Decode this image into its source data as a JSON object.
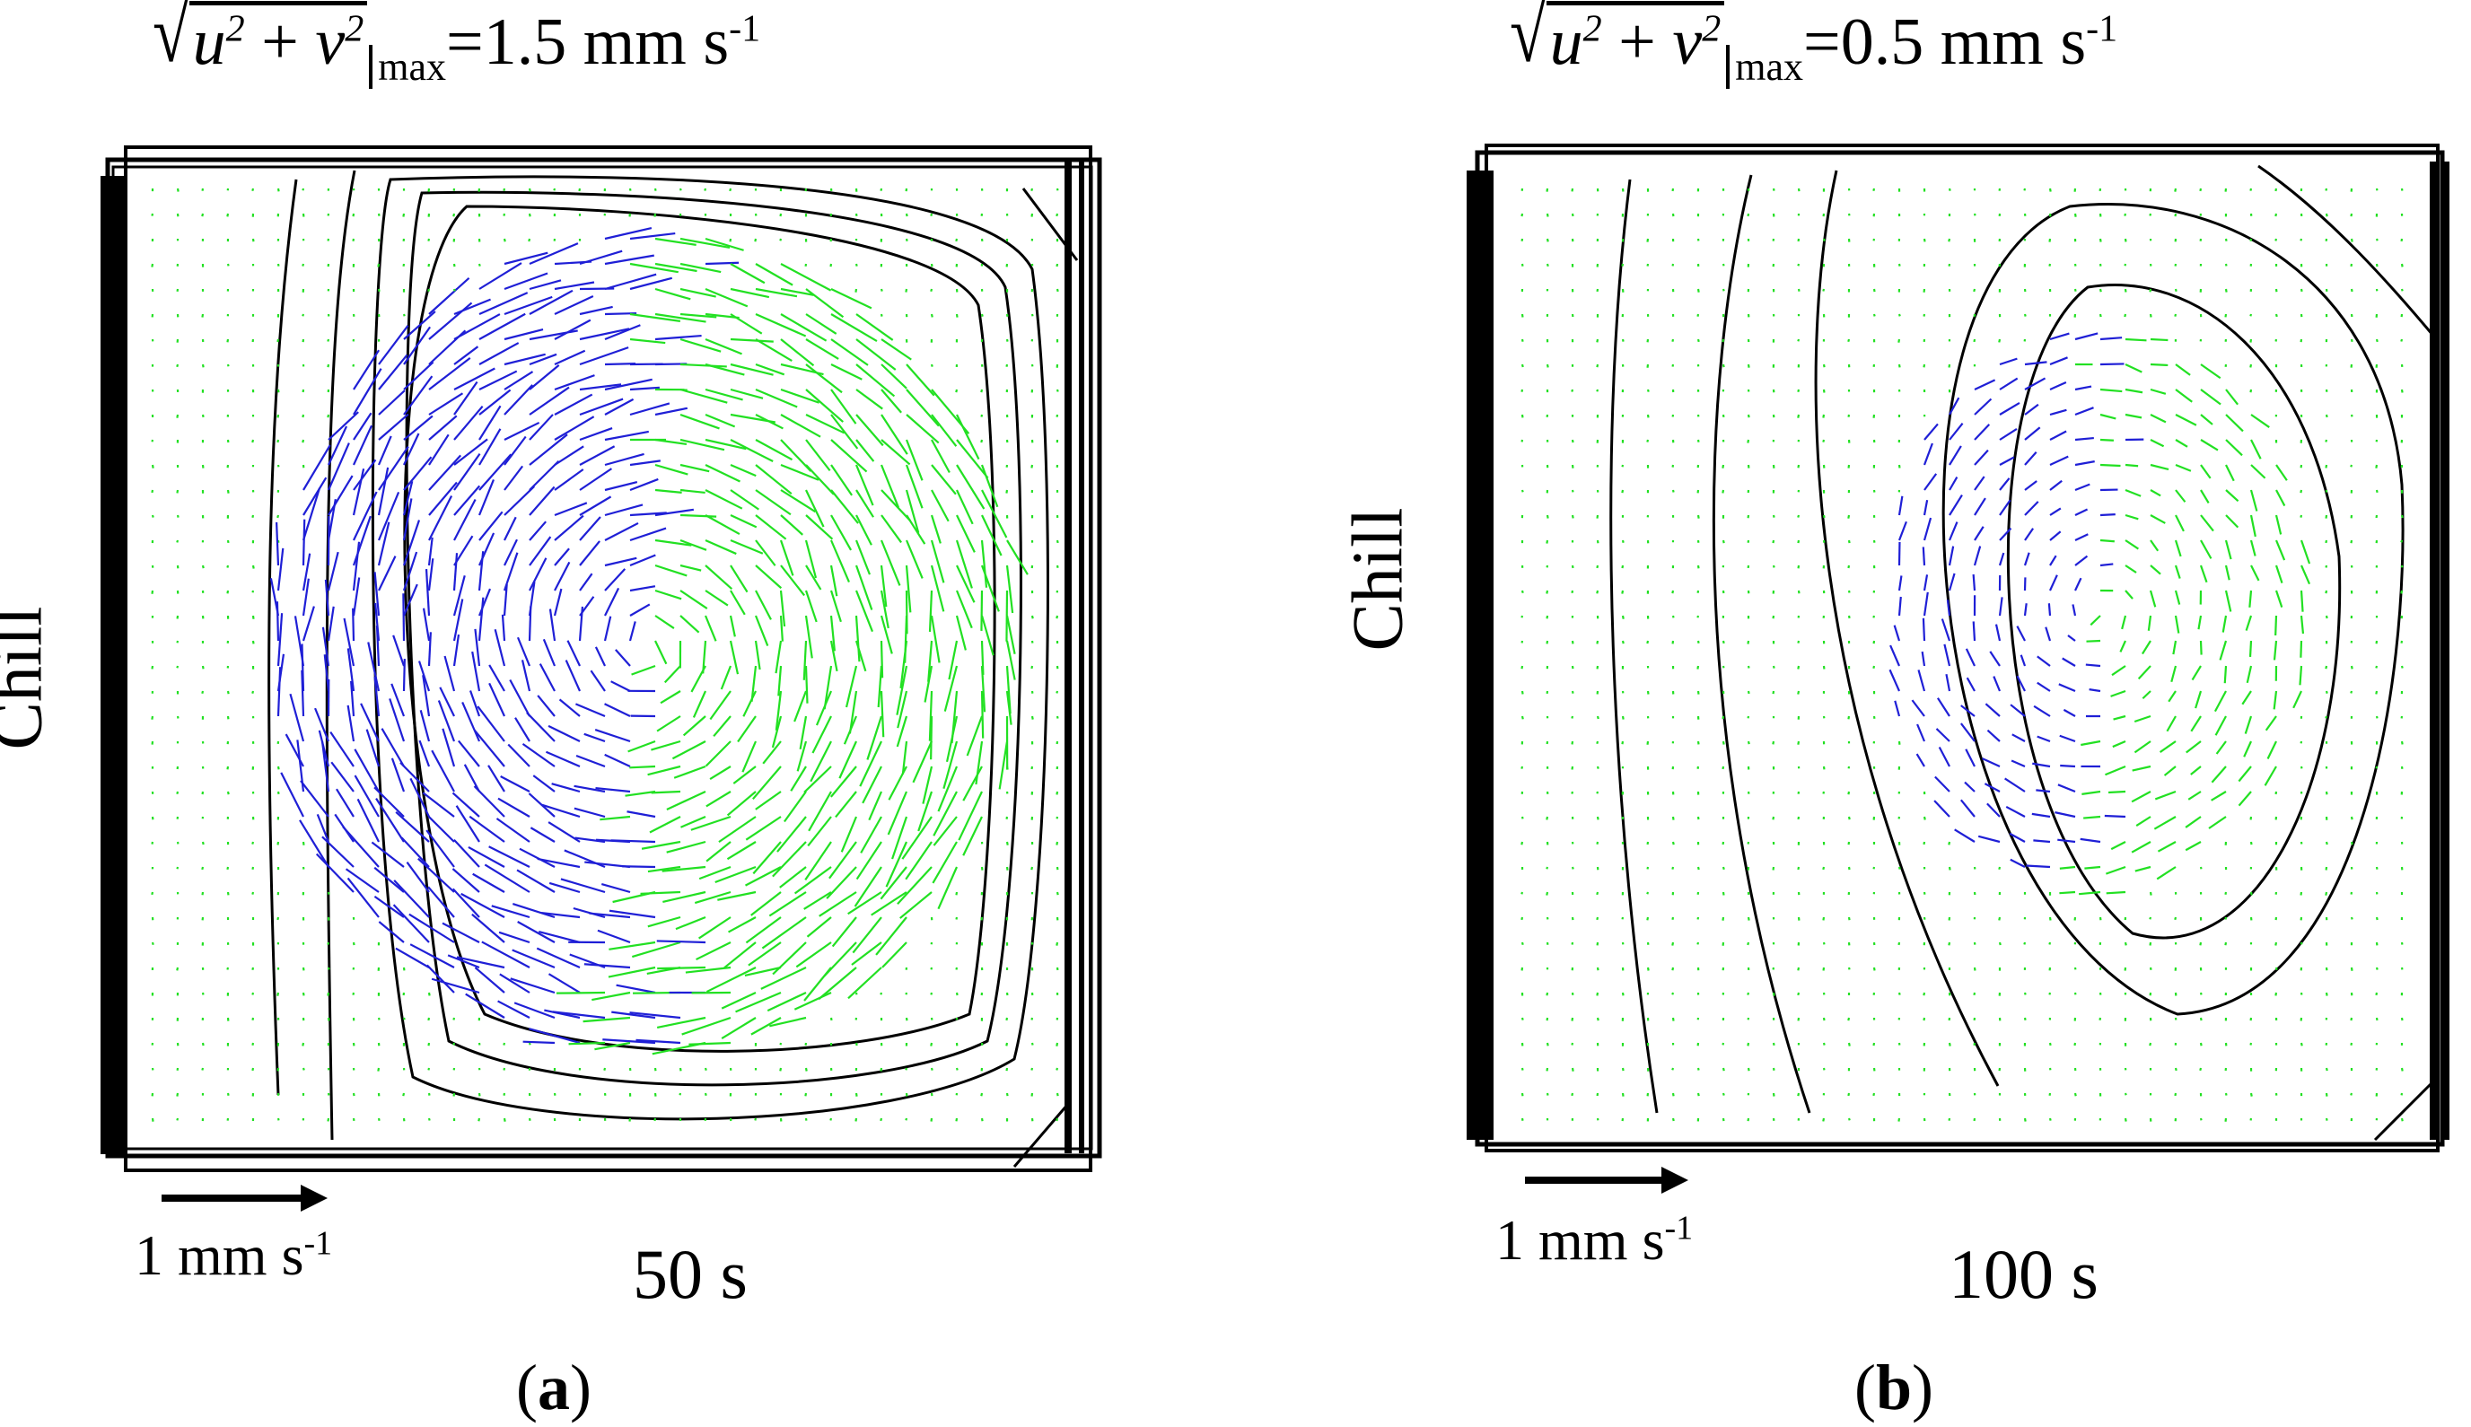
{
  "panels": [
    {
      "id": "a",
      "header": {
        "expr_u": "u",
        "expr_v": "v",
        "exp": "2",
        "plus": "+",
        "sub": "max",
        "value": "=1.5 mm s",
        "unit_exp": "-1"
      },
      "side_label": "Chill",
      "scale": {
        "text": "1 mm s",
        "exp": "-1"
      },
      "time": "50 s",
      "label_open": "(",
      "label_letter": "a",
      "label_close": ")",
      "vmax_mm_s": 1.5
    },
    {
      "id": "b",
      "header": {
        "expr_u": "u",
        "expr_v": "v",
        "exp": "2",
        "plus": "+",
        "sub": "max",
        "value": "=0.5 mm s",
        "unit_exp": "-1"
      },
      "side_label": "Chill",
      "scale": {
        "text": "1 mm s",
        "exp": "-1"
      },
      "time": "100 s",
      "label_open": "(",
      "label_letter": "b",
      "label_close": ")",
      "vmax_mm_s": 0.5
    }
  ],
  "colors": {
    "upward_flow": "#1f1fd6",
    "downward_flow": "#22e022",
    "contour": "#000000"
  }
}
